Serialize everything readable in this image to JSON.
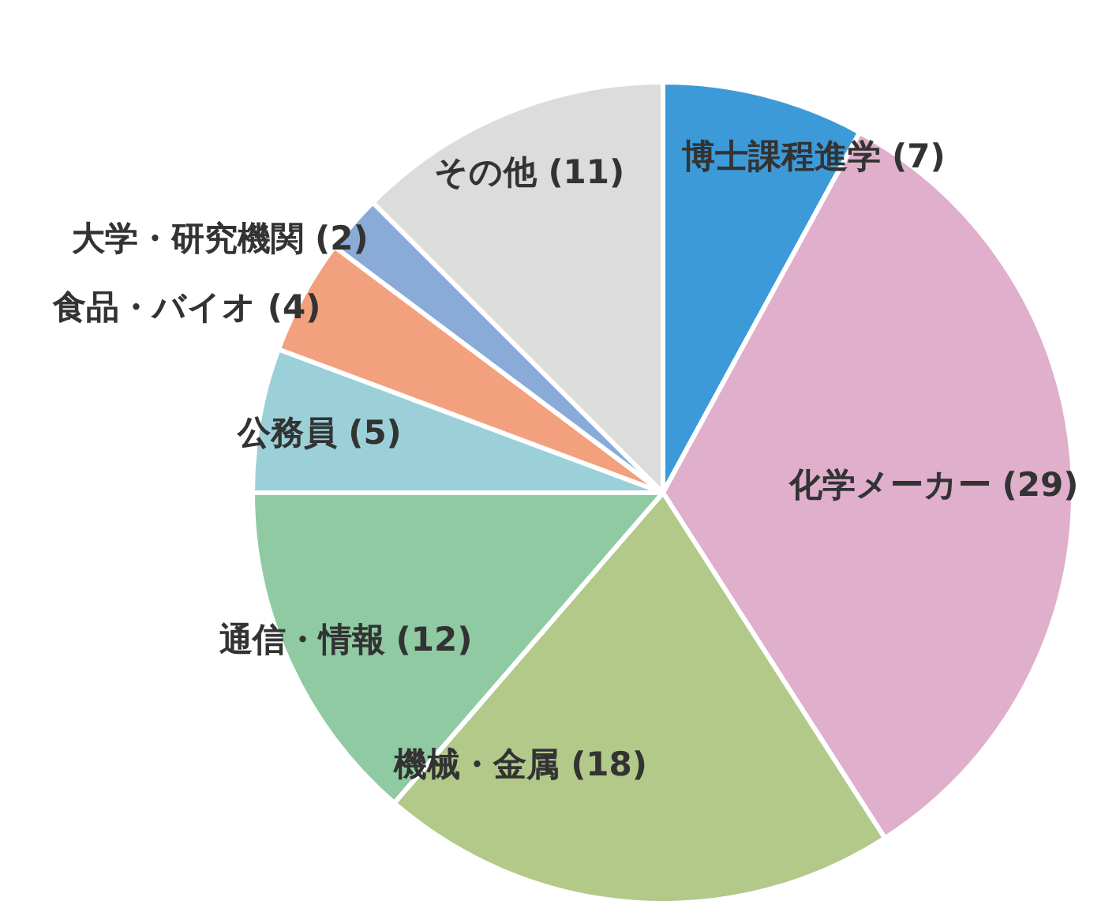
{
  "chart_data": {
    "type": "pie",
    "categories": [
      "博士課程進学",
      "化学メーカー",
      "機械・金属",
      "通信・情報",
      "公務員",
      "食品・バイオ",
      "大学・研究機関",
      "その他"
    ],
    "values": [
      7,
      29,
      18,
      12,
      5,
      4,
      2,
      11
    ],
    "value_labels": [
      "(7)",
      "(29)",
      "(18)",
      "(12)",
      "(5)",
      "(4)",
      "(2)",
      "(11)"
    ],
    "colors": [
      "#3d9ad9",
      "#dfafcb",
      "#b2c98a",
      "#8fcaa3",
      "#9cd0d9",
      "#f2a07d",
      "#8aaad8",
      "#dcdcdc"
    ]
  }
}
